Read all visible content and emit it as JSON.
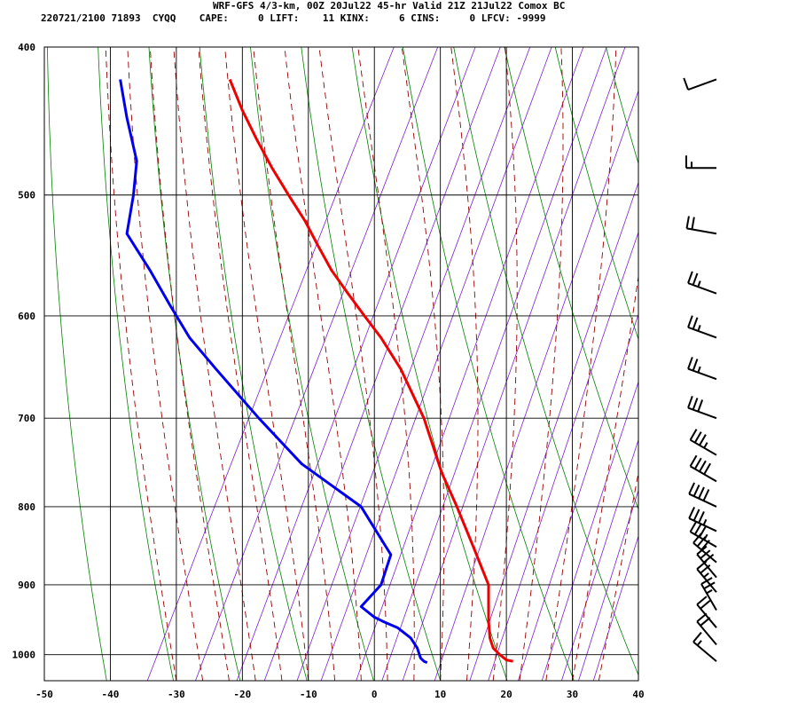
{
  "header": {
    "title": "WRF-GFS 4/3-km, 00Z 20Jul22 45-hr Valid 21Z 21Jul22 Comox BC",
    "info": "220721/2100 71893  CYQQ    CAPE:     0 LIFT:    11 KINX:     6 CINS:     0 LFCV: -9999"
  },
  "chart_data": {
    "type": "line",
    "title": "WRF-GFS 4/3-km, 00Z 20Jul22 45-hr Valid 21Z 21Jul22 Comox BC",
    "xlabel": "",
    "ylabel": "",
    "x_ticks": [
      -50,
      -40,
      -30,
      -20,
      -10,
      0,
      10,
      20,
      30,
      40
    ],
    "y_ticks": [
      400,
      500,
      600,
      700,
      800,
      900,
      1000
    ],
    "xlim": [
      -50,
      40
    ],
    "ylim": [
      1040,
      400
    ],
    "y_scale": "log (skew-T)",
    "grid": true,
    "skew_factor": 30.5,
    "colors": {
      "temperature": "#ee0000",
      "dewpoint": "#0000ee",
      "dry_adiabat": "#008000",
      "moist_adiabat": "#990000",
      "mixing_ratio": "#7f1fd0",
      "grid": "#000000"
    },
    "series": [
      {
        "key": "temperature",
        "x": [
          -21.9,
          -20.0,
          -17.8,
          -15.5,
          -13.0,
          -10.5,
          -8.5,
          -6.5,
          -4.0,
          -1.5,
          1.0,
          4.0,
          7.5,
          10.2,
          12.5,
          15.0,
          17.3,
          17.3,
          17.5,
          18.0,
          19.0,
          20.0,
          21.0
        ],
        "y": [
          420,
          440,
          460,
          480,
          500,
          520,
          540,
          560,
          580,
          600,
          620,
          650,
          700,
          760,
          800,
          850,
          900,
          950,
          975,
          990,
          1000,
          1008,
          1010
        ]
      },
      {
        "key": "dewpoint",
        "x": [
          -38.5,
          -37.5,
          -36.0,
          -36.5,
          -37.5,
          -34.0,
          -31.0,
          -28.0,
          -24.0,
          -17.5,
          -11.0,
          -2.0,
          2.5,
          1.0,
          -2.0,
          0.0,
          1.5,
          3.5,
          5.5,
          6.5,
          7.0,
          7.5,
          8.0
        ],
        "y": [
          420,
          445,
          475,
          500,
          530,
          560,
          590,
          620,
          650,
          700,
          750,
          800,
          860,
          900,
          930,
          945,
          952,
          960,
          975,
          990,
          1005,
          1010,
          1012
        ]
      }
    ],
    "wind_barbs": [
      {
        "p": 420,
        "dir": 250,
        "kt": 10
      },
      {
        "p": 480,
        "dir": 270,
        "kt": 15
      },
      {
        "p": 530,
        "dir": 280,
        "kt": 20
      },
      {
        "p": 580,
        "dir": 290,
        "kt": 25
      },
      {
        "p": 620,
        "dir": 290,
        "kt": 25
      },
      {
        "p": 660,
        "dir": 290,
        "kt": 25
      },
      {
        "p": 700,
        "dir": 290,
        "kt": 30
      },
      {
        "p": 740,
        "dir": 300,
        "kt": 35
      },
      {
        "p": 770,
        "dir": 300,
        "kt": 40
      },
      {
        "p": 800,
        "dir": 295,
        "kt": 40
      },
      {
        "p": 830,
        "dir": 295,
        "kt": 35
      },
      {
        "p": 850,
        "dir": 300,
        "kt": 35
      },
      {
        "p": 870,
        "dir": 310,
        "kt": 30
      },
      {
        "p": 890,
        "dir": 320,
        "kt": 30
      },
      {
        "p": 910,
        "dir": 320,
        "kt": 25
      },
      {
        "p": 935,
        "dir": 330,
        "kt": 25
      },
      {
        "p": 960,
        "dir": 320,
        "kt": 20
      },
      {
        "p": 985,
        "dir": 320,
        "kt": 20
      },
      {
        "p": 1010,
        "dir": 310,
        "kt": 15
      }
    ]
  }
}
